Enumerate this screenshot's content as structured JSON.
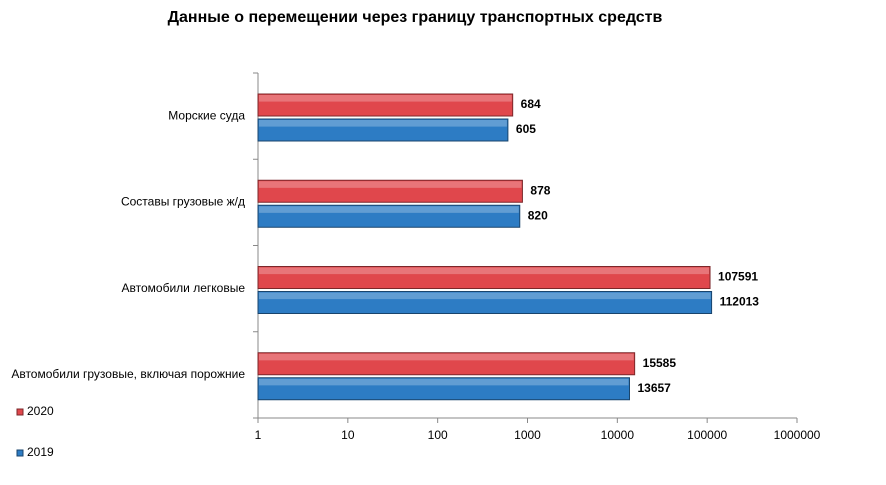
{
  "chart_data": {
    "type": "bar",
    "orientation": "horizontal",
    "title": "Данные о перемещении через границу транспортных средств",
    "categories": [
      "Морские суда",
      "Составы грузовые ж/д",
      "Автомобили легковые",
      "Автомобили грузовые, включая порожние"
    ],
    "series": [
      {
        "name": "2020",
        "color": "#e0474c",
        "values": [
          684,
          878,
          107591,
          15585
        ]
      },
      {
        "name": "2019",
        "color": "#2d7cc4",
        "values": [
          605,
          820,
          112013,
          13657
        ]
      }
    ],
    "log_scale": true,
    "xlim": [
      1,
      1000000
    ],
    "xticks": [
      1,
      10,
      100,
      1000,
      10000,
      100000,
      1000000
    ],
    "grid": false,
    "legend": "bottom-left"
  }
}
